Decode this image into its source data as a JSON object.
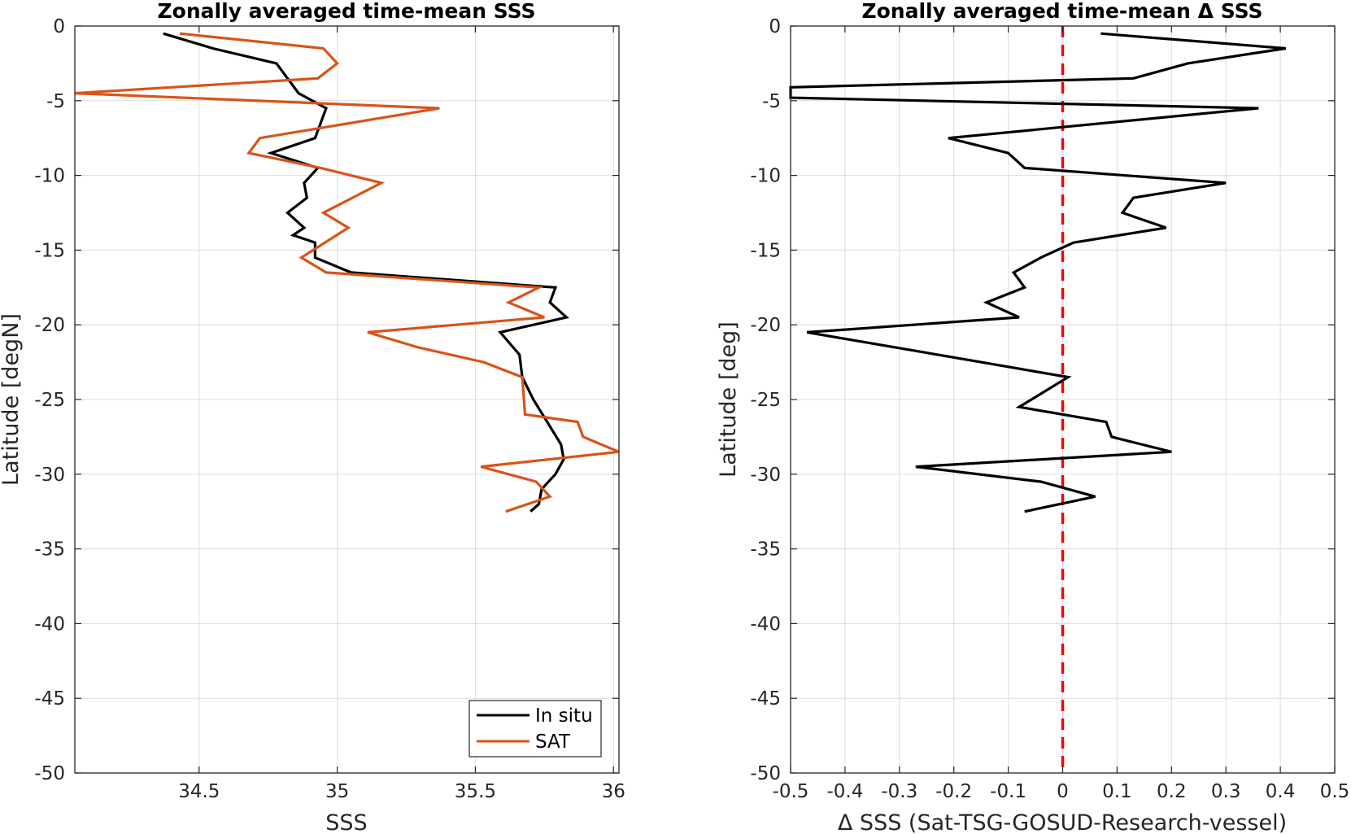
{
  "chart_data": [
    {
      "type": "line",
      "title": "Zonally averaged time-mean SSS",
      "xlabel": "SSS",
      "ylabel": "Latitude [degN]",
      "xlim": [
        34.05,
        36.02
      ],
      "ylim": [
        -50,
        0
      ],
      "xticks": [
        34.5,
        35,
        35.5,
        36
      ],
      "xtick_labels": [
        "34.5",
        "35",
        "35.5",
        "36"
      ],
      "yticks": [
        0,
        -5,
        -10,
        -15,
        -20,
        -25,
        -30,
        -35,
        -40,
        -45,
        -50
      ],
      "ytick_labels": [
        "0",
        "-5",
        "-10",
        "-15",
        "-20",
        "-25",
        "-30",
        "-35",
        "-40",
        "-45",
        "-50"
      ],
      "grid": true,
      "legend": "bottom-right",
      "series": [
        {
          "name": "In situ",
          "color": "#000000",
          "points": [
            [
              34.37,
              -0.5
            ],
            [
              34.55,
              -1.5
            ],
            [
              34.78,
              -2.5
            ],
            [
              34.82,
              -3.5
            ],
            [
              34.86,
              -4.5
            ],
            [
              34.96,
              -5.5
            ],
            [
              34.92,
              -7.5
            ],
            [
              34.76,
              -8.5
            ],
            [
              34.93,
              -9.5
            ],
            [
              34.88,
              -10.5
            ],
            [
              34.89,
              -11.5
            ],
            [
              34.82,
              -12.5
            ],
            [
              34.88,
              -13.5
            ],
            [
              34.84,
              -14.0
            ],
            [
              34.92,
              -14.5
            ],
            [
              34.92,
              -15.5
            ],
            [
              35.05,
              -16.5
            ],
            [
              35.79,
              -17.5
            ],
            [
              35.77,
              -18.5
            ],
            [
              35.83,
              -19.5
            ],
            [
              35.59,
              -20.5
            ],
            [
              35.66,
              -22.0
            ],
            [
              35.67,
              -23.5
            ],
            [
              35.71,
              -25.0
            ],
            [
              35.76,
              -26.5
            ],
            [
              35.81,
              -28.0
            ],
            [
              35.82,
              -29.0
            ],
            [
              35.79,
              -30.0
            ],
            [
              35.74,
              -31.0
            ],
            [
              35.73,
              -32.0
            ],
            [
              35.7,
              -32.5
            ]
          ]
        },
        {
          "name": "SAT",
          "color": "#d95319",
          "points": [
            [
              34.43,
              -0.5
            ],
            [
              34.95,
              -1.5
            ],
            [
              35.0,
              -2.5
            ],
            [
              34.93,
              -3.5
            ],
            [
              34.05,
              -4.5
            ],
            [
              35.37,
              -5.5
            ],
            [
              34.72,
              -7.5
            ],
            [
              34.68,
              -8.5
            ],
            [
              34.94,
              -9.5
            ],
            [
              35.16,
              -10.5
            ],
            [
              34.95,
              -12.5
            ],
            [
              35.04,
              -13.5
            ],
            [
              34.87,
              -15.5
            ],
            [
              34.96,
              -16.5
            ],
            [
              35.73,
              -17.5
            ],
            [
              35.62,
              -18.5
            ],
            [
              35.75,
              -19.5
            ],
            [
              35.11,
              -20.5
            ],
            [
              35.29,
              -21.5
            ],
            [
              35.53,
              -22.5
            ],
            [
              35.67,
              -23.5
            ],
            [
              35.68,
              -26.0
            ],
            [
              35.87,
              -26.5
            ],
            [
              35.89,
              -27.5
            ],
            [
              36.02,
              -28.5
            ],
            [
              35.52,
              -29.5
            ],
            [
              35.72,
              -30.5
            ],
            [
              35.77,
              -31.5
            ],
            [
              35.61,
              -32.5
            ]
          ]
        }
      ]
    },
    {
      "type": "line",
      "title": "Zonally averaged time-mean Δ SSS",
      "xlabel": "Δ SSS (Sat-TSG-GOSUD-Research-vessel)",
      "ylabel": "Latitude [deg]",
      "xlim": [
        -0.5,
        0.5
      ],
      "ylim": [
        -50,
        0
      ],
      "xticks": [
        -0.5,
        -0.4,
        -0.3,
        -0.2,
        -0.1,
        0,
        0.1,
        0.2,
        0.3,
        0.4,
        0.5
      ],
      "xtick_labels": [
        "-0.5",
        "-0.4",
        "-0.3",
        "-0.2",
        "-0.1",
        "0",
        "0.1",
        "0.2",
        "0.3",
        "0.4",
        "0.5"
      ],
      "yticks": [
        0,
        -5,
        -10,
        -15,
        -20,
        -25,
        -30,
        -35,
        -40,
        -45,
        -50
      ],
      "ytick_labels": [
        "0",
        "-5",
        "-10",
        "-15",
        "-20",
        "-25",
        "-30",
        "-35",
        "-40",
        "-45",
        "-50"
      ],
      "grid": true,
      "reference_line": {
        "x": 0,
        "color": "#ff0000",
        "style": "dashed"
      },
      "series": [
        {
          "color": "#000000",
          "points": [
            [
              0.07,
              -0.5
            ],
            [
              0.41,
              -1.5
            ],
            [
              0.23,
              -2.5
            ],
            [
              0.13,
              -3.5
            ],
            [
              -0.5,
              -4.1
            ],
            [
              -0.5,
              -4.8
            ],
            [
              0.36,
              -5.5
            ],
            [
              -0.21,
              -7.5
            ],
            [
              -0.1,
              -8.5
            ],
            [
              -0.07,
              -9.5
            ],
            [
              0.3,
              -10.5
            ],
            [
              0.13,
              -11.5
            ],
            [
              0.11,
              -12.5
            ],
            [
              0.19,
              -13.5
            ],
            [
              0.02,
              -14.5
            ],
            [
              -0.04,
              -15.5
            ],
            [
              -0.09,
              -16.5
            ],
            [
              -0.07,
              -17.5
            ],
            [
              -0.14,
              -18.5
            ],
            [
              -0.08,
              -19.5
            ],
            [
              -0.47,
              -20.5
            ],
            [
              -0.31,
              -21.5
            ],
            [
              -0.15,
              -22.5
            ],
            [
              0.01,
              -23.5
            ],
            [
              -0.08,
              -25.5
            ],
            [
              0.08,
              -26.5
            ],
            [
              0.09,
              -27.5
            ],
            [
              0.2,
              -28.5
            ],
            [
              -0.27,
              -29.5
            ],
            [
              -0.04,
              -30.5
            ],
            [
              0.06,
              -31.5
            ],
            [
              -0.07,
              -32.5
            ]
          ]
        }
      ]
    }
  ]
}
